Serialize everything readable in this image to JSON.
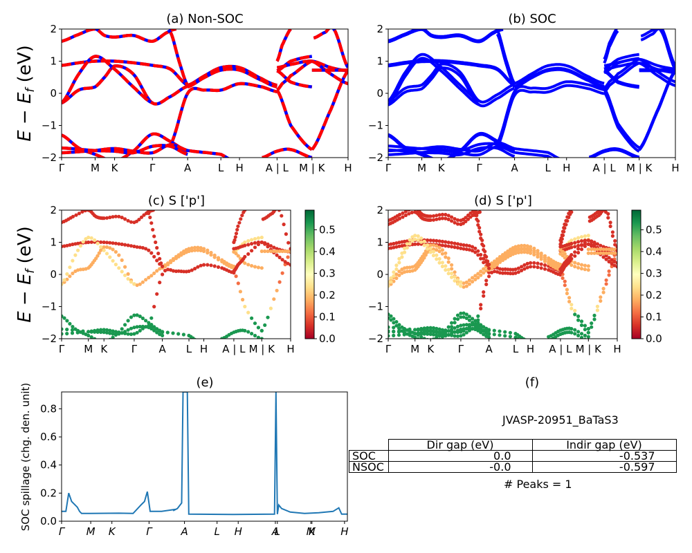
{
  "figure": {
    "panels": {
      "a": {
        "title": "(a) Non-SOC"
      },
      "b": {
        "title": "(b) SOC"
      },
      "c": {
        "title": "(c)  S ['p']"
      },
      "d": {
        "title": "(d) S ['p']"
      },
      "e": {
        "title": "(e)"
      },
      "f": {
        "title": "(f)"
      }
    },
    "ylabel_band": "E − E_f (eV)",
    "ylabel_spillage": "SOC spillage (chg. den. unit)",
    "kpath_labels": [
      "Γ",
      "M",
      "K",
      "Γ",
      "A",
      "L",
      "H",
      "A | L",
      "M | K",
      "H"
    ],
    "kpath_labels_cd": [
      "Γ",
      "M",
      "K",
      "Γ",
      "A",
      "L",
      "H",
      "A | L",
      "M | K",
      "H"
    ],
    "kpath_labels_e": [
      "Γ",
      "M",
      "K",
      "Γ",
      "A",
      "L",
      "H",
      "A",
      "L",
      "M",
      "K",
      "H"
    ],
    "energy_ticks": [
      "−2",
      "−1",
      "0",
      "1",
      "2"
    ],
    "colorbar_ticks": [
      "0.0",
      "0.1",
      "0.2",
      "0.3",
      "0.4",
      "0.5"
    ],
    "spillage_ticks": [
      "0.0",
      "0.2",
      "0.4",
      "0.6",
      "0.8"
    ]
  },
  "info": {
    "material": "JVASP-20951_BaTaS3",
    "table": {
      "headers": [
        "",
        "Dir gap (eV)",
        "Indir gap (eV)"
      ],
      "rows": [
        {
          "label": "SOC",
          "dir": "0.0",
          "indir": "-0.537"
        },
        {
          "label": "NSOC",
          "dir": "-0.0",
          "indir": "-0.597"
        }
      ]
    },
    "peaks": "# Peaks = 1"
  },
  "chart_data": [
    {
      "type": "line",
      "title": "(a) Non-SOC",
      "ylabel": "E − E_f (eV)",
      "ylim": [
        -2,
        2
      ],
      "xticks": [
        "Γ",
        "M",
        "K",
        "Γ",
        "A",
        "L",
        "H",
        "A | L",
        "M | K",
        "H"
      ],
      "xtick_positions": [
        0,
        0.117,
        0.185,
        0.317,
        0.44,
        0.556,
        0.621,
        0.752,
        0.874,
        1.0
      ],
      "series_style": "red dashed over blue",
      "bands": [
        {
          "name": "b1",
          "x": [
            0,
            0.06,
            0.117,
            0.185,
            0.25,
            0.317,
            0.38,
            0.44
          ],
          "y": [
            0.87,
            0.95,
            1.0,
            1.0,
            0.95,
            0.87,
            0.75,
            0.25
          ]
        },
        {
          "name": "b2",
          "x": [
            0,
            0.06,
            0.117,
            0.15,
            0.185,
            0.25,
            0.317,
            0.38,
            0.44
          ],
          "y": [
            -0.3,
            0.1,
            0.2,
            0.5,
            0.85,
            0.6,
            -0.3,
            -0.1,
            0.22
          ]
        },
        {
          "name": "b3",
          "x": [
            0,
            0.06,
            0.117,
            0.185,
            0.25,
            0.317
          ],
          "y": [
            -0.3,
            0.6,
            1.15,
            0.75,
            0.2,
            -0.3
          ]
        },
        {
          "name": "b4",
          "x": [
            0,
            0.05,
            0.117,
            0.15,
            0.185,
            0.25,
            0.317,
            0.37,
            0.4
          ],
          "y": [
            1.62,
            1.8,
            2.0,
            1.8,
            1.75,
            1.8,
            1.62,
            1.9,
            2.0
          ]
        },
        {
          "name": "b5",
          "x": [
            0.38,
            0.44,
            0.5,
            0.556,
            0.621,
            0.7,
            0.752
          ],
          "y": [
            -1.6,
            0.0,
            0.1,
            0.1,
            0.3,
            0.2,
            0.05
          ]
        },
        {
          "name": "b6",
          "x": [
            0.44,
            0.5,
            0.556,
            0.621,
            0.7,
            0.752
          ],
          "y": [
            0.25,
            0.55,
            0.8,
            0.8,
            0.45,
            0.25
          ]
        },
        {
          "name": "b7",
          "x": [
            0.44,
            0.5,
            0.556,
            0.621,
            0.7,
            0.752
          ],
          "y": [
            0.2,
            0.5,
            0.72,
            0.72,
            0.4,
            0.2
          ]
        },
        {
          "name": "b8",
          "x": [
            0.38,
            0.41,
            0.44
          ],
          "y": [
            1.9,
            1.0,
            0.25
          ]
        },
        {
          "name": "b9",
          "x": [
            0.752,
            0.8,
            0.874
          ],
          "y": [
            0.1,
            -1.0,
            -1.75
          ]
        },
        {
          "name": "b10",
          "x": [
            0.874,
            0.94,
            1.0
          ],
          "y": [
            -1.75,
            -0.5,
            0.7
          ]
        },
        {
          "name": "b11",
          "x": [
            0.752,
            0.8,
            0.874
          ],
          "y": [
            0.7,
            1.0,
            1.15
          ]
        },
        {
          "name": "b12",
          "x": [
            0.752,
            0.8,
            0.874,
            0.94,
            1.0
          ],
          "y": [
            0.8,
            0.9,
            1.0,
            0.8,
            0.7
          ]
        },
        {
          "name": "b13",
          "x": [
            0.752,
            0.8,
            0.874
          ],
          "y": [
            0.7,
            0.35,
            0.2
          ]
        },
        {
          "name": "b14",
          "x": [
            0.752,
            0.77,
            0.8,
            0.874
          ],
          "y": [
            0.1,
            0.3,
            0.55,
            1.0
          ]
        },
        {
          "name": "b15",
          "x": [
            0.874,
            0.94,
            1.0
          ],
          "y": [
            1.0,
            0.6,
            0.3
          ]
        },
        {
          "name": "b16",
          "x": [
            0.874,
            0.94,
            1.0
          ],
          "y": [
            0.72,
            0.72,
            0.72
          ]
        },
        {
          "name": "b17",
          "x": [
            0.752,
            0.77,
            0.8
          ],
          "y": [
            1.0,
            1.5,
            2.0
          ]
        },
        {
          "name": "b18",
          "x": [
            0.88,
            0.92,
            0.95,
            1.0
          ],
          "y": [
            1.72,
            1.9,
            2.0,
            0.8
          ]
        },
        {
          "name": "b19",
          "x": [
            0,
            0.06,
            0.117,
            0.185,
            0.25,
            0.317,
            0.38,
            0.44
          ],
          "y": [
            -1.3,
            -1.7,
            -1.9,
            -2.1,
            -1.8,
            -1.27,
            -1.5,
            -1.8
          ]
        },
        {
          "name": "b20",
          "x": [
            0,
            0.117,
            0.185,
            0.25,
            0.317,
            0.38,
            0.44,
            0.556,
            0.6
          ],
          "y": [
            -1.85,
            -1.78,
            -1.72,
            -1.8,
            -1.85,
            -1.6,
            -1.78,
            -1.9,
            -2.1
          ]
        },
        {
          "name": "b21",
          "x": [
            0,
            0.117,
            0.185,
            0.25,
            0.317,
            0.38,
            0.44
          ],
          "y": [
            -1.7,
            -1.78,
            -1.8,
            -1.85,
            -1.65,
            -1.65,
            -1.9
          ]
        },
        {
          "name": "b22",
          "x": [
            0.7,
            0.752,
            0.8,
            0.874
          ],
          "y": [
            -2.0,
            -1.8,
            -1.75,
            -2.0
          ]
        }
      ]
    },
    {
      "type": "line",
      "title": "(b) SOC",
      "ylim": [
        -2,
        2
      ],
      "xticks": [
        "Γ",
        "M",
        "K",
        "Γ",
        "A",
        "L",
        "H",
        "A | L",
        "M | K",
        "H"
      ],
      "series_style": "blue solid",
      "note": "SOC-split copies of the non-SOC bands"
    },
    {
      "type": "scatter",
      "title": "(c)  S ['p']",
      "ylim": [
        -2,
        2
      ],
      "colorbar": {
        "cmap": "RdYlGn",
        "range": [
          0.0,
          0.59
        ],
        "ticks": [
          0.0,
          0.1,
          0.2,
          0.3,
          0.4,
          0.5
        ]
      },
      "xticks": [
        "Γ",
        "M",
        "K",
        "Γ",
        "A",
        "L",
        "H",
        "A | L",
        "M | K",
        "H"
      ]
    },
    {
      "type": "scatter",
      "title": "(d) S ['p']",
      "ylim": [
        -2,
        2
      ],
      "colorbar": {
        "cmap": "RdYlGn",
        "range": [
          0.0,
          0.59
        ],
        "ticks": [
          0.0,
          0.1,
          0.2,
          0.3,
          0.4,
          0.5
        ]
      },
      "xticks": [
        "Γ",
        "M",
        "K",
        "Γ",
        "A",
        "L",
        "H",
        "A | L",
        "M | K",
        "H"
      ]
    },
    {
      "type": "line",
      "title": "(e)",
      "ylabel": "SOC spillage (chg. den. unit)",
      "ylim": [
        0,
        0.92
      ],
      "xticks": [
        "Γ",
        "M",
        "K",
        "Γ",
        "A",
        "L",
        "H",
        "A",
        "L",
        "M",
        "K",
        "H"
      ],
      "xtick_positions": [
        0,
        0.102,
        0.176,
        0.306,
        0.43,
        0.544,
        0.618,
        0.748,
        0.755,
        0.872,
        0.876,
        0.99
      ],
      "series": [
        {
          "name": "spillage",
          "color": "#1f77b4",
          "x": [
            0,
            0.015,
            0.025,
            0.035,
            0.045,
            0.055,
            0.063,
            0.07,
            0.1,
            0.2,
            0.25,
            0.28,
            0.29,
            0.3,
            0.31,
            0.35,
            0.4,
            0.39,
            0.405,
            0.42,
            0.425,
            0.43,
            0.435,
            0.44,
            0.445,
            0.6,
            0.745,
            0.75,
            0.755,
            0.76,
            0.77,
            0.8,
            0.85,
            0.9,
            0.95,
            0.97,
            0.98,
            1.0
          ],
          "y": [
            0.07,
            0.07,
            0.2,
            0.14,
            0.12,
            0.1,
            0.07,
            0.055,
            0.055,
            0.057,
            0.055,
            0.12,
            0.14,
            0.21,
            0.07,
            0.07,
            0.085,
            0.075,
            0.09,
            0.13,
            0.92,
            0.92,
            0.92,
            0.92,
            0.05,
            0.048,
            0.05,
            0.92,
            0.05,
            0.115,
            0.09,
            0.065,
            0.055,
            0.06,
            0.07,
            0.095,
            0.05,
            0.05
          ]
        }
      ]
    },
    {
      "type": "table",
      "title": "(f)",
      "subtitle": "JVASP-20951_BaTaS3",
      "columns": [
        "Dir gap (eV)",
        "Indir gap (eV)"
      ],
      "rows": [
        [
          "SOC",
          "0.0",
          "-0.537"
        ],
        [
          "NSOC",
          "-0.0",
          "-0.597"
        ]
      ],
      "annotation": "# Peaks = 1"
    }
  ]
}
